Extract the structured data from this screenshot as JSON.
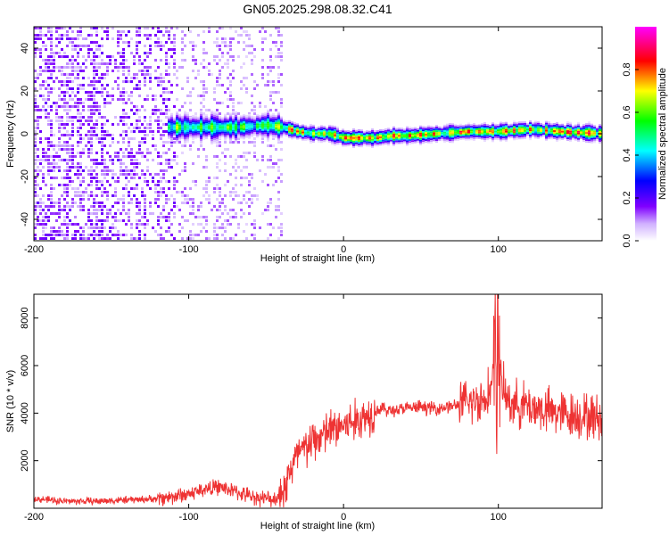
{
  "title": "GN05.2025.298.08.32.C41",
  "chart_data": [
    {
      "type": "heatmap",
      "title": "GN05.2025.298.08.32.C41",
      "xlabel": "Height of straight line (km)",
      "ylabel": "Frequency (Hz)",
      "xlim": [
        -200,
        167
      ],
      "ylim": [
        -50,
        50
      ],
      "x_ticks": [
        -200,
        -100,
        0,
        100
      ],
      "x_tick_labels": [
        "-200",
        "-100",
        "0",
        "100"
      ],
      "y_ticks": [
        -40,
        -20,
        0,
        20,
        40
      ],
      "y_tick_labels": [
        "-40",
        "-20",
        "0",
        "20",
        "40"
      ],
      "colorbar": {
        "label": "Normalized spectral amplitude",
        "range": [
          0,
          1
        ],
        "ticks": [
          0.0,
          0.2,
          0.4,
          0.6,
          0.8
        ],
        "tick_labels": [
          "0.0",
          "0.2",
          "0.4",
          "0.6",
          "0.8"
        ],
        "colors": [
          "#ffffff",
          "#8000ff",
          "#0000ff",
          "#00ffff",
          "#00ff00",
          "#ffff00",
          "#ff0000",
          "#ff00ff"
        ]
      },
      "ridge": {
        "description": "dominant frequency line",
        "x": [
          -110,
          -90,
          -70,
          -50,
          -40,
          -30,
          -20,
          -10,
          0,
          10,
          20,
          30,
          40,
          60,
          80,
          100,
          120,
          140,
          167
        ],
        "freq": [
          3,
          3,
          3,
          4,
          3,
          1,
          0,
          0,
          -2,
          -2,
          -2,
          -1,
          -1,
          0,
          1,
          1,
          2,
          1,
          0
        ]
      },
      "noise_region": {
        "x_start": -200,
        "x_end": -40
      }
    },
    {
      "type": "line",
      "xlabel": "Height of straight line (km)",
      "ylabel": "SNR (10 * v/v)",
      "xlim": [
        -200,
        167
      ],
      "ylim": [
        0,
        9000
      ],
      "x_ticks": [
        -200,
        -100,
        0,
        100
      ],
      "x_tick_labels": [
        "-200",
        "-100",
        "0",
        "100"
      ],
      "y_ticks": [
        2000,
        4000,
        6000,
        8000
      ],
      "y_tick_labels": [
        "2000",
        "4000",
        "6000",
        "8000"
      ],
      "series": [
        {
          "name": "SNR",
          "color": "#ee3333",
          "x": [
            -200,
            -180,
            -160,
            -140,
            -120,
            -110,
            -100,
            -90,
            -80,
            -70,
            -60,
            -50,
            -45,
            -40,
            -35,
            -30,
            -20,
            -10,
            0,
            10,
            20,
            25,
            30,
            40,
            50,
            60,
            70,
            80,
            90,
            95,
            99,
            100,
            101,
            105,
            110,
            120,
            130,
            140,
            150,
            167
          ],
          "values": [
            400,
            300,
            300,
            350,
            400,
            500,
            600,
            800,
            900,
            700,
            500,
            400,
            400,
            500,
            1500,
            2200,
            2800,
            3200,
            3500,
            3700,
            4100,
            4200,
            4100,
            4200,
            4250,
            4200,
            4300,
            4400,
            4600,
            5000,
            6000,
            8000,
            5500,
            4600,
            4400,
            4300,
            4100,
            4000,
            3900,
            3800
          ]
        }
      ]
    }
  ]
}
